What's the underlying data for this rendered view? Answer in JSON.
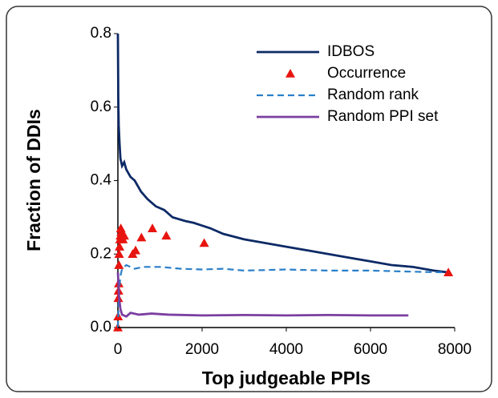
{
  "chart_data": {
    "type": "line",
    "xlabel": "Top judgeable PPIs",
    "ylabel": "Fraction of DDIs",
    "xlim": [
      0,
      8000
    ],
    "xticks": [
      0,
      2000,
      4000,
      6000,
      8000
    ],
    "ylim": [
      0,
      0.8
    ],
    "yticks": [
      {
        "value": 0,
        "label": "0.0"
      },
      0.2,
      0.4,
      0.6,
      0.8
    ],
    "legend": "upper right",
    "series": [
      {
        "name": "IDBOS",
        "type": "line",
        "color": "#0d2a66",
        "dashed": false,
        "x": [
          0,
          10,
          20,
          40,
          60,
          100,
          150,
          200,
          300,
          400,
          550,
          700,
          900,
          1100,
          1300,
          1600,
          1800,
          2200,
          2500,
          3000,
          3500,
          4000,
          4500,
          5000,
          5500,
          6000,
          6500,
          7000,
          7500,
          7850
        ],
        "values": [
          0.8,
          0.62,
          0.55,
          0.5,
          0.46,
          0.44,
          0.45,
          0.43,
          0.41,
          0.4,
          0.37,
          0.35,
          0.33,
          0.32,
          0.3,
          0.29,
          0.285,
          0.27,
          0.255,
          0.24,
          0.23,
          0.22,
          0.21,
          0.2,
          0.19,
          0.18,
          0.17,
          0.165,
          0.155,
          0.15
        ]
      },
      {
        "name": "Occurrence",
        "type": "scatter",
        "color": "#e8140f",
        "x": [
          0,
          5,
          10,
          15,
          20,
          25,
          30,
          40,
          50,
          60,
          70,
          80,
          100,
          120,
          150,
          350,
          420,
          560,
          820,
          1150,
          2050,
          7850
        ],
        "values": [
          0.0,
          0.03,
          0.08,
          0.1,
          0.12,
          0.17,
          0.2,
          0.22,
          0.24,
          0.25,
          0.27,
          0.26,
          0.25,
          0.24,
          0.25,
          0.2,
          0.21,
          0.245,
          0.27,
          0.25,
          0.23,
          0.15
        ]
      },
      {
        "name": "Random rank",
        "type": "line",
        "color": "#2a7fc9",
        "dashed": true,
        "x": [
          0,
          30,
          60,
          100,
          200,
          400,
          600,
          1000,
          1500,
          2000,
          2500,
          3000,
          4000,
          5000,
          6000,
          7000,
          7800
        ],
        "values": [
          0.0,
          0.1,
          0.14,
          0.16,
          0.17,
          0.16,
          0.165,
          0.165,
          0.16,
          0.158,
          0.16,
          0.155,
          0.158,
          0.155,
          0.155,
          0.152,
          0.15
        ]
      },
      {
        "name": "Random PPI set",
        "type": "line",
        "color": "#7a3fa0",
        "dashed": false,
        "x": [
          0,
          30,
          60,
          100,
          200,
          300,
          500,
          800,
          1200,
          2000,
          3000,
          4000,
          5000,
          6000,
          6900
        ],
        "values": [
          0.15,
          0.08,
          0.05,
          0.035,
          0.03,
          0.04,
          0.035,
          0.038,
          0.035,
          0.033,
          0.034,
          0.033,
          0.034,
          0.033,
          0.033
        ]
      }
    ]
  }
}
